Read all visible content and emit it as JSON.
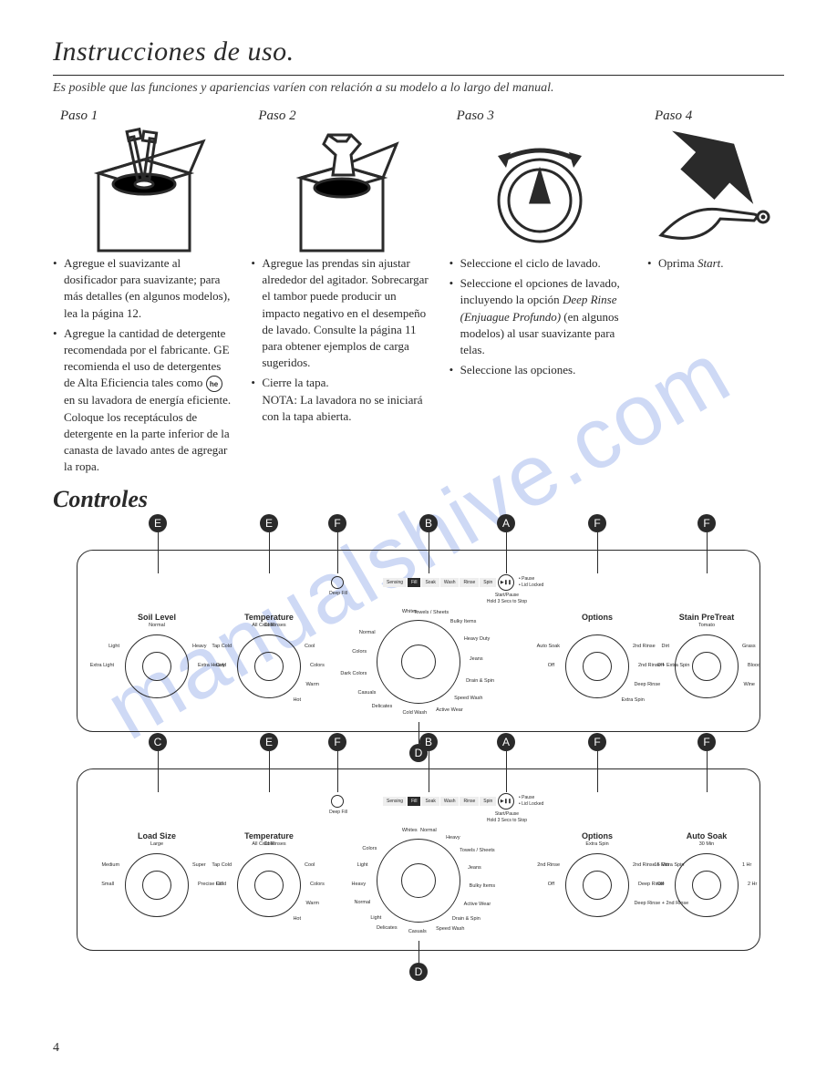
{
  "title": "Instrucciones de uso.",
  "subtitle": "Es posible que las funciones y apariencias varíen con relación a su modelo a lo largo del manual.",
  "watermark": "manualshive.com",
  "pageNumber": "4",
  "heBadge": "he",
  "steps": [
    {
      "label": "Paso 1",
      "bullets": [
        "Agregue el suavizante al dosificador para suavizante; para más detalles (en algunos modelos), lea la página 12.",
        "Agregue la cantidad de detergente recomendada por el fabricante. GE recomienda el uso de detergentes de Alta Eficiencia tales como {he} en su lavadora de energía eficiente. Coloque los receptáculos de detergente en la parte inferior de la canasta de lavado antes de agregar la ropa."
      ]
    },
    {
      "label": "Paso 2",
      "bullets": [
        "Agregue las prendas sin ajustar alrededor del agitador. Sobrecargar el tambor puede producir un impacto negativo en el desempeño de lavado. Consulte la página 11 para obtener ejemplos de carga sugeridos.",
        "Cierre la tapa.\nNOTA: La lavadora no se iniciará con la tapa abierta."
      ]
    },
    {
      "label": "Paso 3",
      "bullets": [
        "Seleccione el ciclo de lavado.",
        "Seleccione el opciones de lavado, incluyendo la opción Deep Rinse (Enjuague Profundo) (en algunos modelos) al usar suavizante para telas.",
        "Seleccione las opciones."
      ]
    },
    {
      "label": "Paso 4",
      "bullets": [
        "Oprima Start."
      ]
    }
  ],
  "controlsTitle": "Controles",
  "panel1": {
    "tags": [
      "E",
      "E",
      "F",
      "B",
      "A",
      "F",
      "F",
      "D"
    ],
    "deepFill": "Deep Fill",
    "progress": [
      "Sensing",
      "Fill",
      "Soak",
      "Wash",
      "Rinse",
      "Spin"
    ],
    "startPause": "Start/Pause",
    "startHint": "Hold 3 Secs to Stop",
    "statusPause": "• Pause",
    "statusLock": "• Lid Locked",
    "knobs": [
      {
        "label": "Soil Level",
        "sub": "",
        "left": [
          "Light",
          "Extra Light"
        ],
        "top": "Normal",
        "right": [
          "Heavy",
          "Extra Heavy"
        ]
      },
      {
        "label": "Temperature",
        "sub": "All Cold Rinses",
        "left": [
          "Tap Cold",
          "Cold"
        ],
        "top": "Cold",
        "right": [
          "Cool",
          "Colors",
          "Warm",
          "Hot"
        ]
      },
      {
        "label": "",
        "sub": "",
        "big": true,
        "around": [
          "Whites",
          "Towels / Sheets",
          "Bulky Items",
          "Heavy Duty",
          "Jeans",
          "Drain & Spin",
          "Speed Wash",
          "Active Wear",
          "Cold Wash",
          "Delicates",
          "Casuals",
          "Dark Colors",
          "Colors",
          "Normal"
        ]
      },
      {
        "label": "Options",
        "sub": "",
        "left": [
          "Auto Soak",
          "Off"
        ],
        "right": [
          "2nd Rinse",
          "2nd Rinse + Extra Spin",
          "Deep Rinse",
          "Extra Spin"
        ]
      },
      {
        "label": "Stain PreTreat",
        "sub": "",
        "left": [
          "Dirt",
          "Off"
        ],
        "top": "Tomato",
        "right": [
          "Grass",
          "Blood",
          "Wine"
        ]
      }
    ]
  },
  "panel2": {
    "tags": [
      "C",
      "E",
      "F",
      "B",
      "A",
      "F",
      "F",
      "D"
    ],
    "deepFill": "Deep Fill",
    "progress": [
      "Sensing",
      "Fill",
      "Soak",
      "Wash",
      "Rinse",
      "Spin"
    ],
    "startPause": "Start/Pause",
    "startHint": "Hold 3 Secs to Stop",
    "statusPause": "• Pause",
    "statusLock": "• Lid Locked",
    "knobs": [
      {
        "label": "Load Size",
        "sub": "",
        "left": [
          "Medium",
          "Small"
        ],
        "top": "Large",
        "right": [
          "Super",
          "Precise Fill"
        ]
      },
      {
        "label": "Temperature",
        "sub": "All Cold Rinses",
        "left": [
          "Tap Cold",
          "Cold"
        ],
        "top": "Cold",
        "right": [
          "Cool",
          "Colors",
          "Warm",
          "Hot"
        ]
      },
      {
        "label": "",
        "sub": "",
        "big": true,
        "around": [
          "Whites",
          "Normal",
          "Heavy",
          "Towels / Sheets",
          "Jeans",
          "Bulky Items",
          "Active Wear",
          "Drain & Spin",
          "Speed Wash",
          "Casuals",
          "Delicates",
          "Light",
          "Normal",
          "Heavy",
          "Light",
          "Colors"
        ]
      },
      {
        "label": "Options",
        "sub": "",
        "left": [
          "2nd Rinse",
          "Off"
        ],
        "top": "Extra Spin",
        "right": [
          "2nd Rinse + Extra Spin",
          "Deep Rinse",
          "Deep Rinse + 2nd Rinse"
        ]
      },
      {
        "label": "Auto Soak",
        "sub": "",
        "left": [
          "15 Min",
          "Off"
        ],
        "top": "30 Min",
        "right": [
          "1 Hr",
          "2 Hr"
        ]
      }
    ]
  }
}
